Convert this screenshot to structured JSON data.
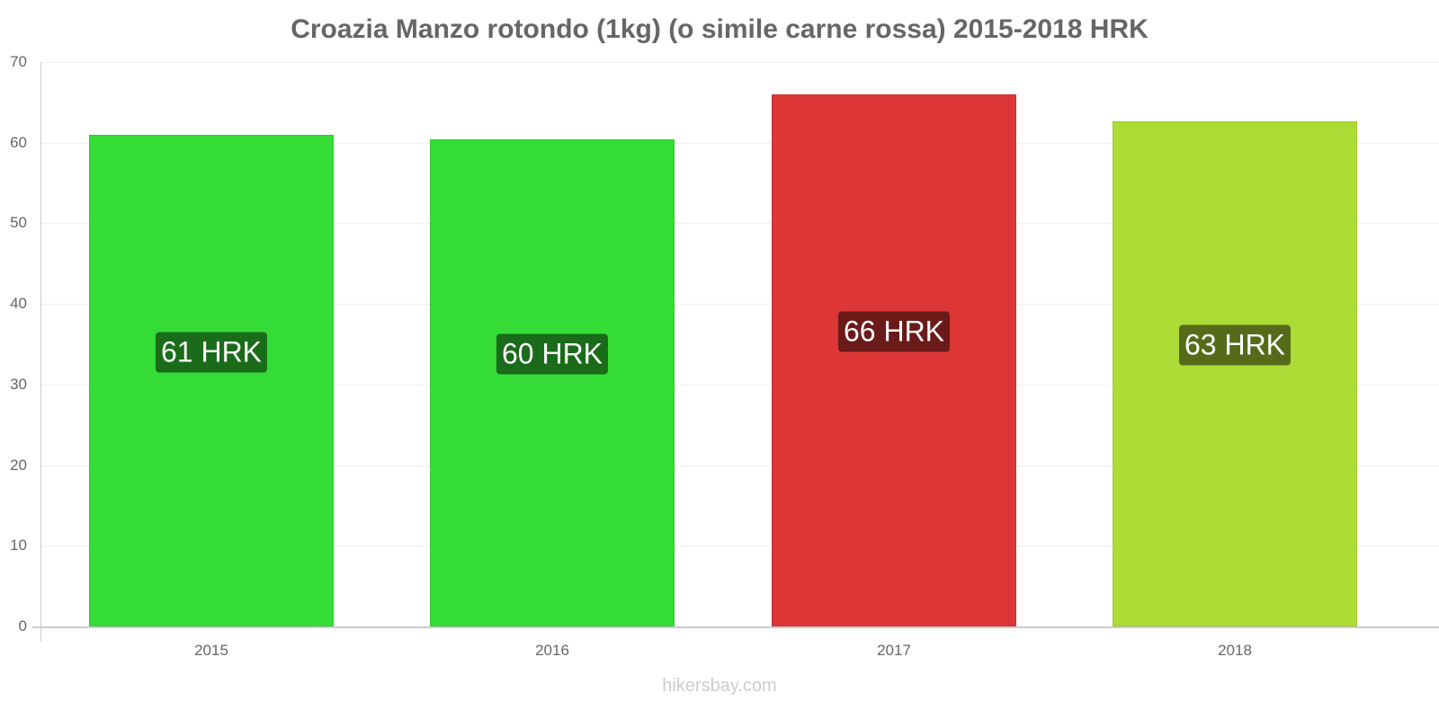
{
  "title": "Croazia Manzo rotondo (1kg) (o simile carne rossa) 2015-2018 HRK",
  "footer": "hikersbay.com",
  "chart_data": {
    "type": "bar",
    "title": "Croazia Manzo rotondo (1kg) (o simile carne rossa) 2015-2018 HRK",
    "xlabel": "",
    "ylabel": "",
    "categories": [
      "2015",
      "2016",
      "2017",
      "2018"
    ],
    "values": [
      60.95,
      60.4,
      66.0,
      62.6
    ],
    "data_labels": [
      "61 HRK",
      "60 HRK",
      "66 HRK",
      "63 HRK"
    ],
    "bar_colors": [
      "#36dc36",
      "#36dc36",
      "#dc3636",
      "#addc36"
    ],
    "label_colors": [
      "#1a6b1a",
      "#1a6b1a",
      "#6b1a1a",
      "#556b1a"
    ],
    "ylim": [
      0,
      70
    ],
    "yticks": [
      0,
      10,
      20,
      30,
      40,
      50,
      60,
      70
    ],
    "grid": true,
    "legend": "none"
  }
}
